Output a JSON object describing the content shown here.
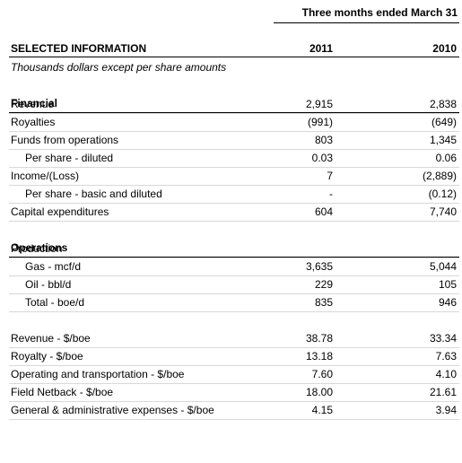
{
  "header": {
    "period": "Three months ended March 31",
    "title": "SELECTED INFORMATION",
    "columns": [
      "2011",
      "2010"
    ],
    "subtitle": "Thousands dollars except per share amounts"
  },
  "sections": [
    {
      "title": "Financial",
      "rows": [
        {
          "label": "Revenue",
          "values": [
            "2,915",
            "2,838"
          ]
        },
        {
          "label": "Royalties",
          "values": [
            "(991)",
            "(649)"
          ]
        },
        {
          "label": "Funds from operations",
          "values": [
            "803",
            "1,345"
          ],
          "subrows": [
            {
              "label": "Per share - diluted",
              "values": [
                "0.03",
                "0.06"
              ]
            }
          ]
        },
        {
          "label": "Income/(Loss)",
          "values": [
            "7",
            "(2,889)"
          ],
          "subrows": [
            {
              "label": "Per share - basic and diluted",
              "values": [
                "-",
                "(0.12)"
              ]
            }
          ]
        },
        {
          "label": "Capital expenditures",
          "values": [
            "604",
            "7,740"
          ]
        }
      ]
    },
    {
      "title": "Operations",
      "rows": [
        {
          "label": "Production",
          "subrows": [
            {
              "label": "Gas - mcf/d",
              "values": [
                "3,635",
                "5,044"
              ]
            },
            {
              "label": "Oil - bbl/d",
              "values": [
                "229",
                "105"
              ]
            },
            {
              "label": "Total - boe/d",
              "values": [
                "835",
                "946"
              ]
            }
          ]
        }
      ]
    },
    {
      "rows": [
        {
          "label": "Revenue - $/boe",
          "values": [
            "38.78",
            "33.34"
          ]
        },
        {
          "label": "Royalty - $/boe",
          "values": [
            "13.18",
            "7.63"
          ]
        },
        {
          "label": "Operating and transportation - $/boe",
          "values": [
            "7.60",
            "4.10"
          ]
        },
        {
          "label": "Field Netback - $/boe",
          "values": [
            "18.00",
            "21.61"
          ]
        },
        {
          "label": "General & administrative expenses - $/boe",
          "values": [
            "4.15",
            "3.94"
          ]
        }
      ]
    }
  ]
}
